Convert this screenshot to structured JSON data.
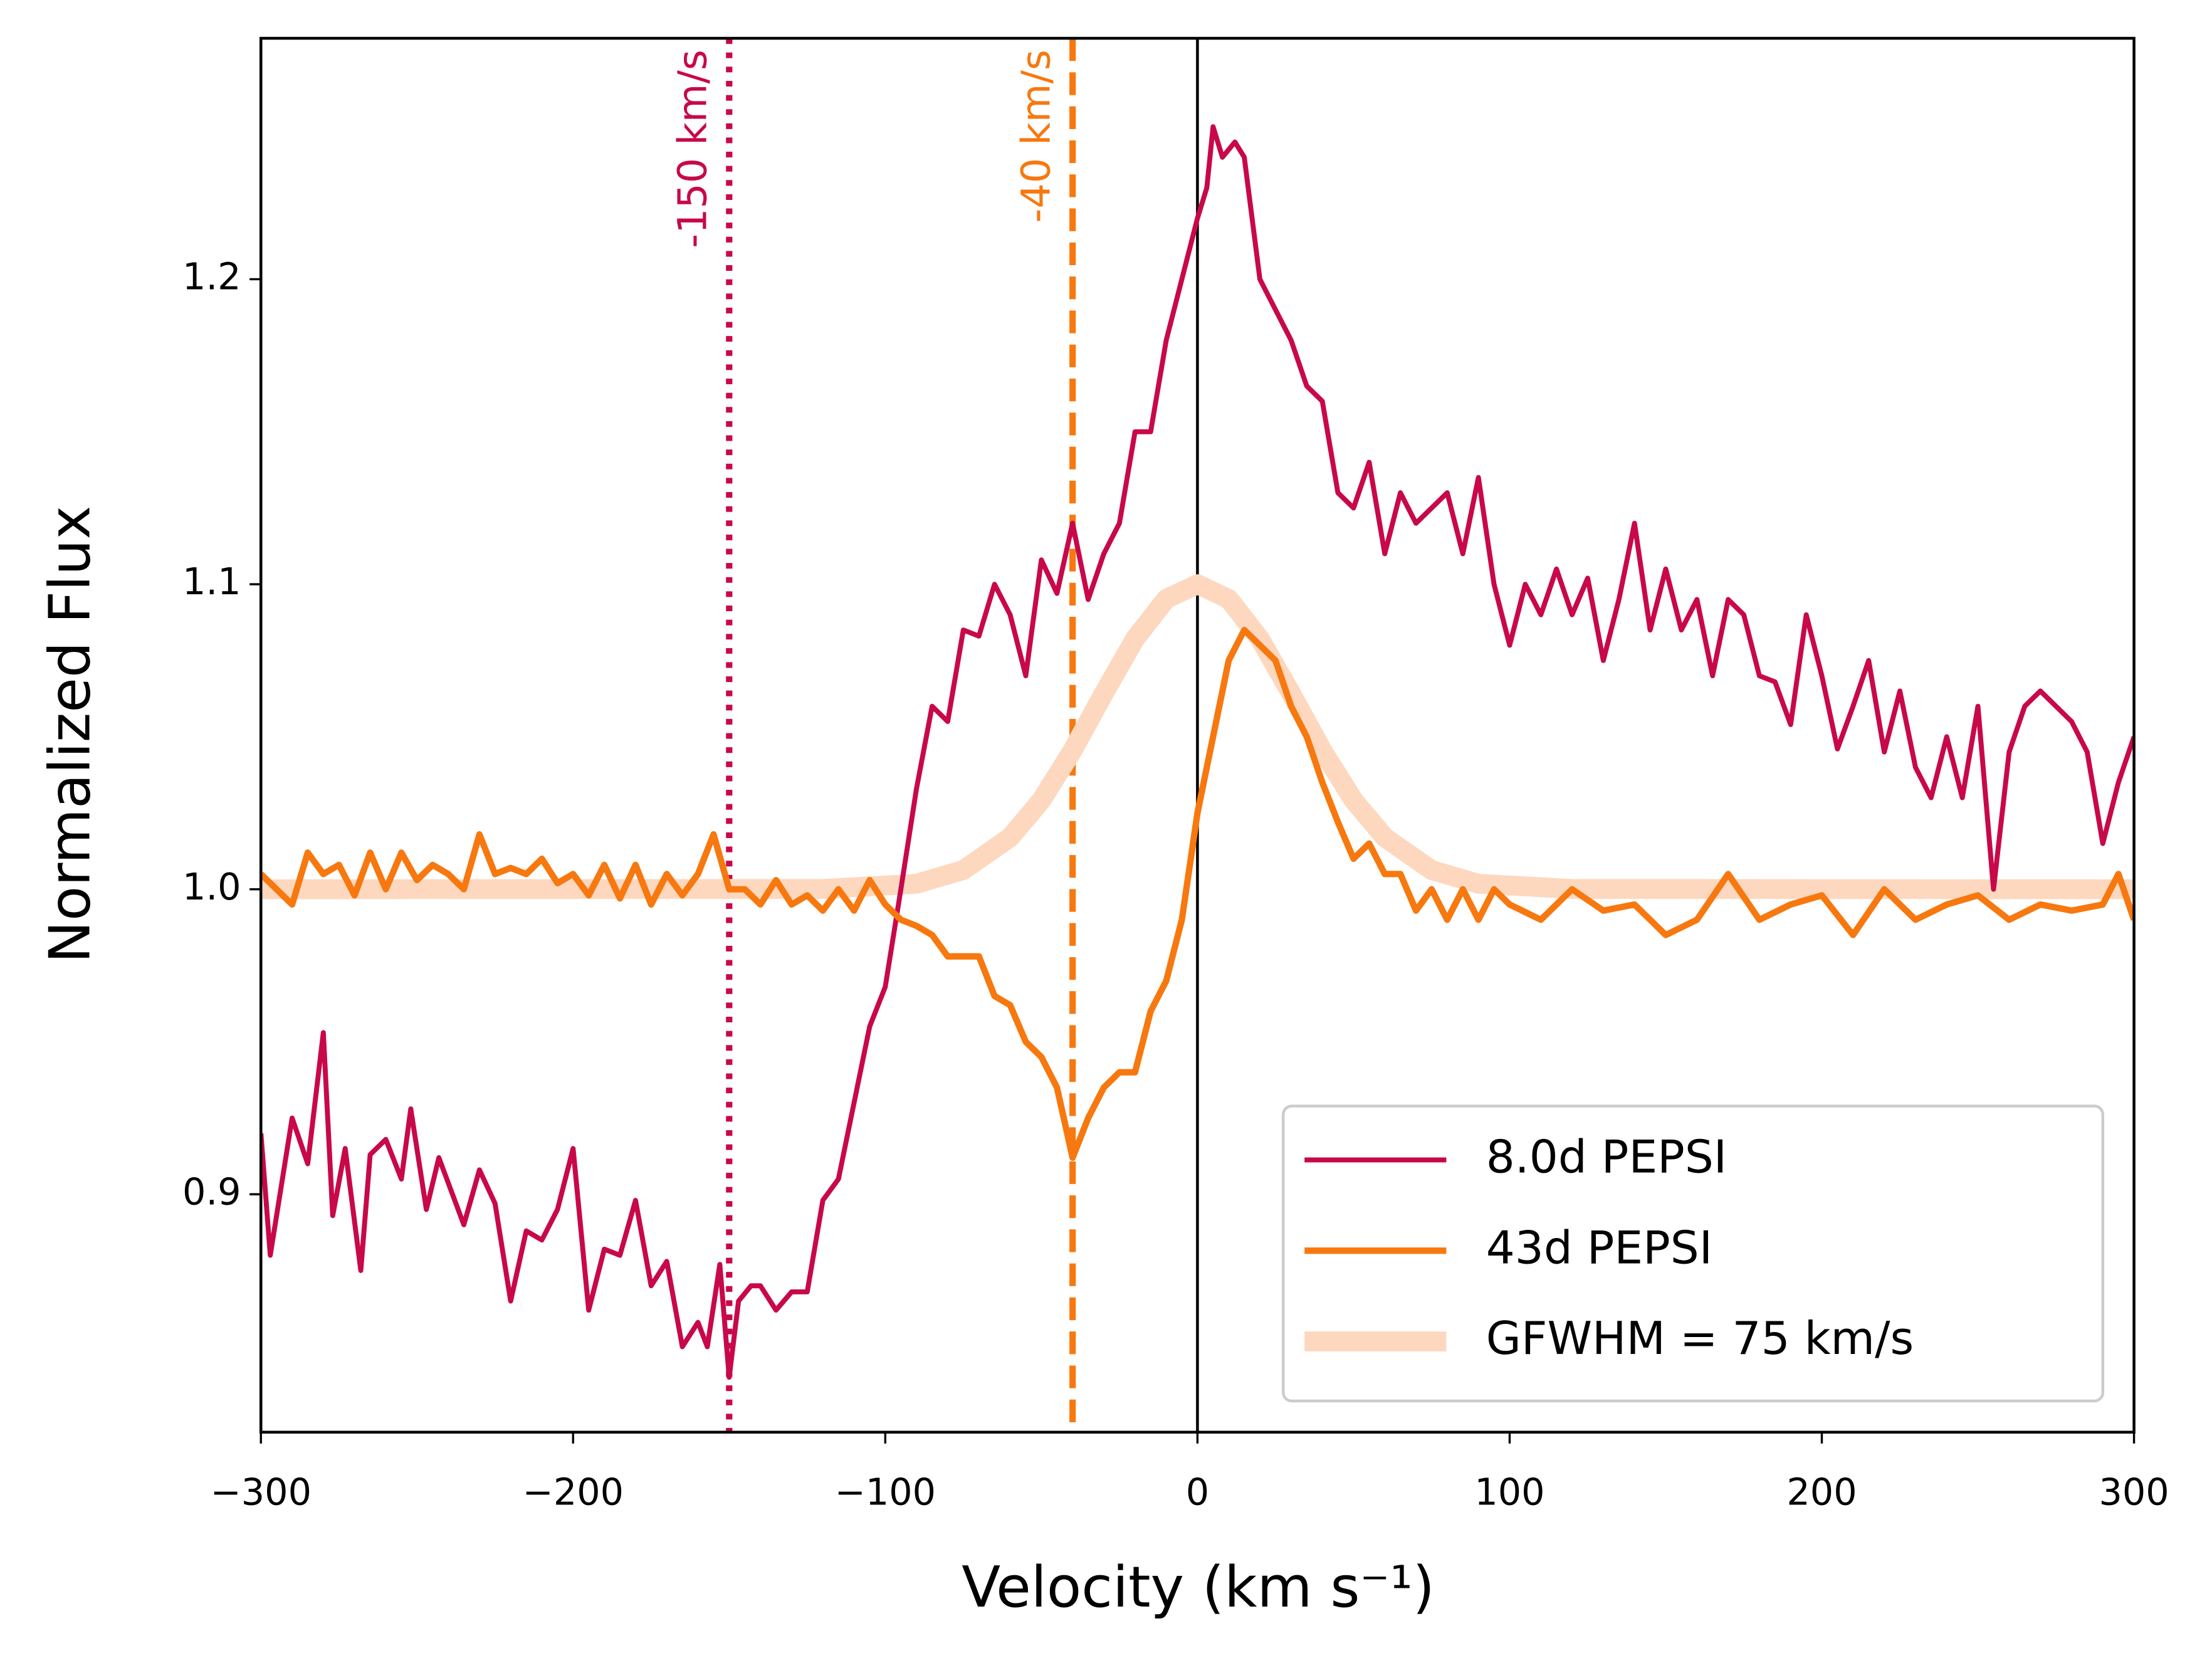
{
  "chart_data": {
    "type": "line",
    "xlabel": "Velocity (km s⁻¹)",
    "ylabel": "Normalized Flux",
    "xlim": [
      -300,
      300
    ],
    "ylim": [
      0.822,
      1.279
    ],
    "xticks": [
      {
        "value": -300,
        "label": "−300"
      },
      {
        "value": -200,
        "label": "−200"
      },
      {
        "value": -100,
        "label": "−100"
      },
      0,
      100,
      200,
      300
    ],
    "yticks": [
      0.9,
      {
        "value": 1.0,
        "label": "1.0"
      },
      1.1,
      1.2
    ],
    "legend": "lower right",
    "series": [
      {
        "name": "8.0d PEPSI",
        "color": "#c8084a",
        "width": 3.5,
        "x": [
          -300,
          -297,
          -290,
          -285,
          -280,
          -277,
          -273,
          -268,
          -265,
          -260,
          -255,
          -252,
          -247,
          -243,
          -235,
          -230,
          -225,
          -220,
          -215,
          -210,
          -205,
          -200,
          -195,
          -190,
          -185,
          -180,
          -175,
          -170,
          -165,
          -160,
          -157,
          -153,
          -150,
          -147,
          -143,
          -140,
          -135,
          -130,
          -125,
          -120,
          -115,
          -110,
          -105,
          -100,
          -95,
          -90,
          -85,
          -80,
          -75,
          -70,
          -65,
          -60,
          -55,
          -50,
          -45,
          -40,
          -35,
          -30,
          -25,
          -20,
          -15,
          -10,
          -5,
          0,
          3,
          5,
          8,
          12,
          15,
          20,
          25,
          30,
          35,
          40,
          45,
          50,
          55,
          60,
          65,
          70,
          75,
          80,
          85,
          90,
          95,
          100,
          105,
          110,
          115,
          120,
          125,
          130,
          135,
          140,
          145,
          150,
          155,
          160,
          165,
          170,
          175,
          180,
          185,
          190,
          195,
          200,
          205,
          210,
          215,
          220,
          225,
          230,
          235,
          240,
          245,
          250,
          255,
          260,
          265,
          270,
          275,
          280,
          285,
          290,
          295,
          300
        ],
        "values": [
          0.92,
          0.88,
          0.925,
          0.91,
          0.953,
          0.893,
          0.915,
          0.875,
          0.913,
          0.918,
          0.905,
          0.928,
          0.895,
          0.912,
          0.89,
          0.908,
          0.897,
          0.865,
          0.888,
          0.885,
          0.895,
          0.915,
          0.862,
          0.882,
          0.88,
          0.898,
          0.87,
          0.878,
          0.85,
          0.858,
          0.85,
          0.877,
          0.84,
          0.865,
          0.87,
          0.87,
          0.862,
          0.868,
          0.868,
          0.898,
          0.905,
          0.93,
          0.955,
          0.968,
          1.0,
          1.033,
          1.06,
          1.055,
          1.085,
          1.083,
          1.1,
          1.09,
          1.07,
          1.108,
          1.097,
          1.12,
          1.095,
          1.11,
          1.12,
          1.15,
          1.15,
          1.18,
          1.2,
          1.22,
          1.23,
          1.25,
          1.24,
          1.245,
          1.24,
          1.2,
          1.19,
          1.18,
          1.165,
          1.16,
          1.13,
          1.125,
          1.14,
          1.11,
          1.13,
          1.12,
          1.125,
          1.13,
          1.11,
          1.135,
          1.1,
          1.08,
          1.1,
          1.09,
          1.105,
          1.09,
          1.102,
          1.075,
          1.095,
          1.12,
          1.085,
          1.105,
          1.085,
          1.095,
          1.07,
          1.095,
          1.09,
          1.07,
          1.068,
          1.054,
          1.09,
          1.07,
          1.046,
          1.06,
          1.075,
          1.045,
          1.065,
          1.04,
          1.03,
          1.05,
          1.03,
          1.06,
          1.0,
          1.045,
          1.06,
          1.065,
          1.06,
          1.055,
          1.045,
          1.015,
          1.035,
          1.05
        ]
      },
      {
        "name": "43d PEPSI",
        "color": "#f7780f",
        "width": 4.5,
        "x": [
          -300,
          -295,
          -290,
          -285,
          -280,
          -275,
          -270,
          -265,
          -260,
          -255,
          -250,
          -245,
          -240,
          -235,
          -230,
          -225,
          -220,
          -215,
          -210,
          -205,
          -200,
          -195,
          -190,
          -185,
          -180,
          -175,
          -170,
          -165,
          -160,
          -155,
          -150,
          -145,
          -140,
          -135,
          -130,
          -125,
          -120,
          -115,
          -110,
          -105,
          -100,
          -95,
          -90,
          -85,
          -80,
          -75,
          -70,
          -65,
          -60,
          -55,
          -50,
          -45,
          -40,
          -35,
          -30,
          -25,
          -20,
          -15,
          -10,
          -5,
          0,
          5,
          10,
          15,
          20,
          25,
          30,
          35,
          40,
          45,
          50,
          55,
          60,
          65,
          70,
          75,
          80,
          85,
          90,
          95,
          100,
          110,
          120,
          130,
          140,
          150,
          160,
          170,
          180,
          190,
          200,
          210,
          220,
          230,
          240,
          250,
          260,
          270,
          280,
          290,
          295,
          300
        ],
        "values": [
          1.005,
          1.0,
          0.995,
          1.012,
          1.005,
          1.008,
          0.998,
          1.012,
          1.0,
          1.012,
          1.003,
          1.008,
          1.005,
          1.0,
          1.018,
          1.005,
          1.007,
          1.005,
          1.01,
          1.002,
          1.005,
          0.998,
          1.008,
          0.997,
          1.008,
          0.995,
          1.005,
          0.998,
          1.005,
          1.018,
          1.0,
          1.0,
          0.995,
          1.003,
          0.995,
          0.998,
          0.993,
          1.0,
          0.993,
          1.003,
          0.995,
          0.99,
          0.988,
          0.985,
          0.978,
          0.978,
          0.978,
          0.965,
          0.962,
          0.95,
          0.945,
          0.935,
          0.912,
          0.925,
          0.935,
          0.94,
          0.94,
          0.96,
          0.97,
          0.99,
          1.025,
          1.05,
          1.075,
          1.085,
          1.08,
          1.075,
          1.06,
          1.05,
          1.035,
          1.022,
          1.01,
          1.015,
          1.005,
          1.005,
          0.993,
          1.0,
          0.99,
          1.0,
          0.99,
          1.0,
          0.995,
          0.99,
          1.0,
          0.993,
          0.995,
          0.985,
          0.99,
          1.005,
          0.99,
          0.995,
          0.998,
          0.985,
          1.0,
          0.99,
          0.995,
          0.998,
          0.99,
          0.995,
          0.993,
          0.995,
          1.005,
          0.99
        ]
      },
      {
        "name": "GFWHM = 75 km/s",
        "color": "#fdd8bf",
        "width": 14,
        "x": [
          -300,
          -120,
          -90,
          -75,
          -60,
          -50,
          -40,
          -30,
          -20,
          -10,
          0,
          10,
          20,
          30,
          40,
          50,
          60,
          75,
          90,
          120,
          300
        ],
        "values": [
          1.0,
          1.0001,
          1.0018,
          1.0063,
          1.017,
          1.0292,
          1.0455,
          1.0642,
          1.0821,
          1.0952,
          1.1,
          1.0952,
          1.0821,
          1.0642,
          1.0455,
          1.0292,
          1.017,
          1.0063,
          1.0018,
          1.0001,
          1.0
        ]
      }
    ],
    "vlines": [
      {
        "x": -150,
        "color": "#c8084a",
        "style": "dotted",
        "label": "-150 km/s"
      },
      {
        "x": -40,
        "color": "#f7780f",
        "style": "dashed",
        "label": "-40 km/s"
      },
      {
        "x": 0,
        "color": "#000000",
        "style": "solid"
      }
    ]
  }
}
